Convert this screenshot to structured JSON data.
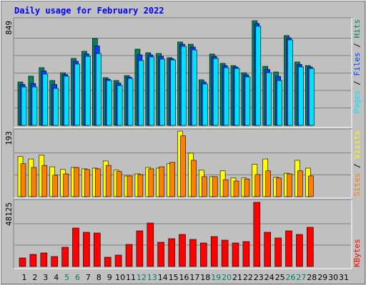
{
  "title": "Daily usage for February 2022",
  "legend_separator": " / ",
  "chart_data": [
    {
      "type": "bar",
      "ylim": [
        0,
        849
      ],
      "yticks": [
        849
      ],
      "grid_divisions": 6,
      "series": [
        {
          "name": "Hits",
          "color": "#00805c",
          "values": [
            352,
            399,
            468,
            364,
            427,
            543,
            601,
            705,
            387,
            364,
            404,
            618,
            589,
            583,
            549,
            676,
            658,
            370,
            578,
            503,
            485,
            427,
            849,
            479,
            433,
            728,
            514,
            485,
            null,
            null,
            null
          ]
        },
        {
          "name": "Files",
          "color": "#0040ff",
          "values": [
            332,
            340,
            442,
            332,
            413,
            520,
            580,
            644,
            375,
            343,
            392,
            572,
            572,
            560,
            540,
            658,
            635,
            352,
            560,
            485,
            473,
            410,
            826,
            453,
            398,
            710,
            494,
            473,
            null,
            null,
            null
          ]
        },
        {
          "name": "Pages",
          "color": "#00e0ff",
          "values": [
            312,
            312,
            416,
            300,
            399,
            497,
            560,
            583,
            364,
            323,
            381,
            526,
            555,
            537,
            531,
            641,
            612,
            335,
            543,
            468,
            462,
            393,
            803,
            427,
            364,
            693,
            474,
            462,
            null,
            null,
            null
          ]
        }
      ]
    },
    {
      "type": "bar",
      "ylim": [
        0,
        193
      ],
      "yticks": [
        193
      ],
      "grid_divisions": 3,
      "series": [
        {
          "name": "Visits",
          "color": "#ffff00",
          "values": [
            118,
            111,
            122,
            88,
            80,
            86,
            82,
            84,
            105,
            78,
            61,
            67,
            86,
            84,
            97,
            193,
            128,
            78,
            59,
            76,
            55,
            55,
            95,
            111,
            57,
            69,
            107,
            84,
            null,
            null,
            null
          ]
        },
        {
          "name": "Sites",
          "color": "#ff8000",
          "values": [
            97,
            86,
            92,
            63,
            67,
            86,
            80,
            82,
            92,
            74,
            61,
            65,
            82,
            88,
            101,
            179,
            107,
            59,
            59,
            50,
            46,
            52,
            65,
            76,
            55,
            67,
            76,
            61,
            null,
            null,
            null
          ]
        }
      ]
    },
    {
      "type": "bar",
      "ylim": [
        0,
        48125
      ],
      "yticks": [
        48125
      ],
      "grid_divisions": 3,
      "categories": [
        "1",
        "2",
        "3",
        "4",
        "5",
        "6",
        "7",
        "8",
        "9",
        "10",
        "11",
        "12",
        "13",
        "14",
        "15",
        "16",
        "17",
        "18",
        "19",
        "20",
        "21",
        "22",
        "23",
        "24",
        "25",
        "26",
        "27",
        "28",
        "29",
        "30",
        "31"
      ],
      "category_colors": [
        "#000000",
        "#000000",
        "#000000",
        "#000000",
        "#00805c",
        "#00805c",
        "#000000",
        "#000000",
        "#000000",
        "#000000",
        "#000000",
        "#00805c",
        "#00805c",
        "#000000",
        "#000000",
        "#000000",
        "#000000",
        "#000000",
        "#00805c",
        "#00805c",
        "#000000",
        "#000000",
        "#000000",
        "#000000",
        "#000000",
        "#00805c",
        "#00805c",
        "#000000",
        "#000000",
        "#000000",
        "#000000"
      ],
      "series": [
        {
          "name": "KBytes",
          "color": "#ff0000",
          "values": [
            6416,
            9090,
            10160,
            7486,
            14437,
            28874,
            25666,
            25130,
            6951,
            8555,
            16576,
            26735,
            32617,
            18180,
            20853,
            24061,
            20319,
            17645,
            22458,
            19784,
            17645,
            18714,
            48125,
            25666,
            21388,
            26735,
            24061,
            29409,
            null,
            null,
            null
          ]
        }
      ]
    }
  ]
}
